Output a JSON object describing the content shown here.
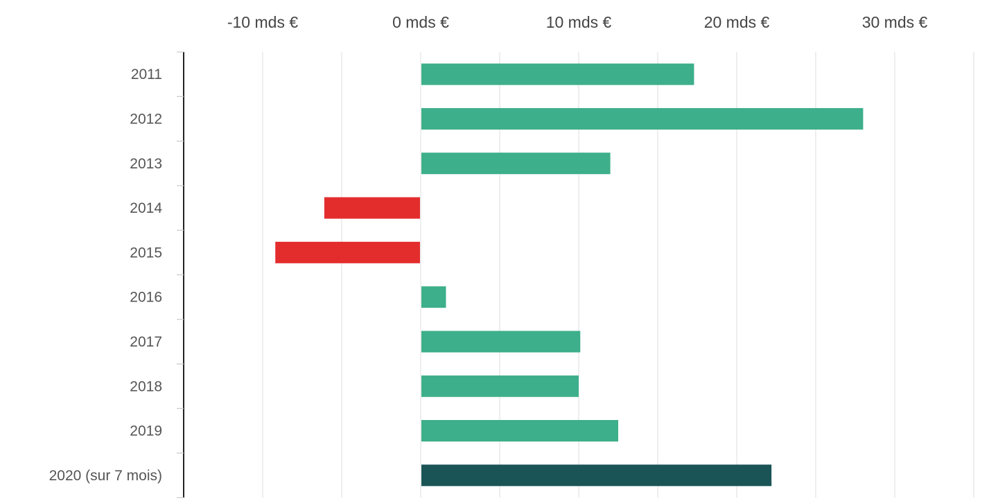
{
  "chart_data": {
    "type": "bar",
    "orientation": "horizontal",
    "title": "",
    "xlabel": "",
    "ylabel": "",
    "x_unit": "mds €",
    "xlim": [
      -20,
      35
    ],
    "x_ticks": [
      -10,
      0,
      10,
      20,
      30
    ],
    "x_tick_labels": [
      "-10 mds €",
      "0 mds €",
      "10 mds €",
      "20 mds €",
      "30 mds €"
    ],
    "grid_step": 5,
    "grid": true,
    "legend": "none",
    "categories": [
      "2011",
      "2012",
      "2013",
      "2014",
      "2015",
      "2016",
      "2017",
      "2018",
      "2019",
      "2020 (sur 7 mois)"
    ],
    "values": [
      17.3,
      28.0,
      12.0,
      -6.1,
      -9.2,
      1.6,
      10.1,
      10.0,
      12.5,
      22.2
    ],
    "colors": {
      "positive": "#3daf8a",
      "negative": "#e32d2d",
      "highlight": "#1a5456",
      "grid": "#e5e5e5",
      "axis": "#222222"
    },
    "highlight_category": "2020 (sur 7 mois)"
  }
}
